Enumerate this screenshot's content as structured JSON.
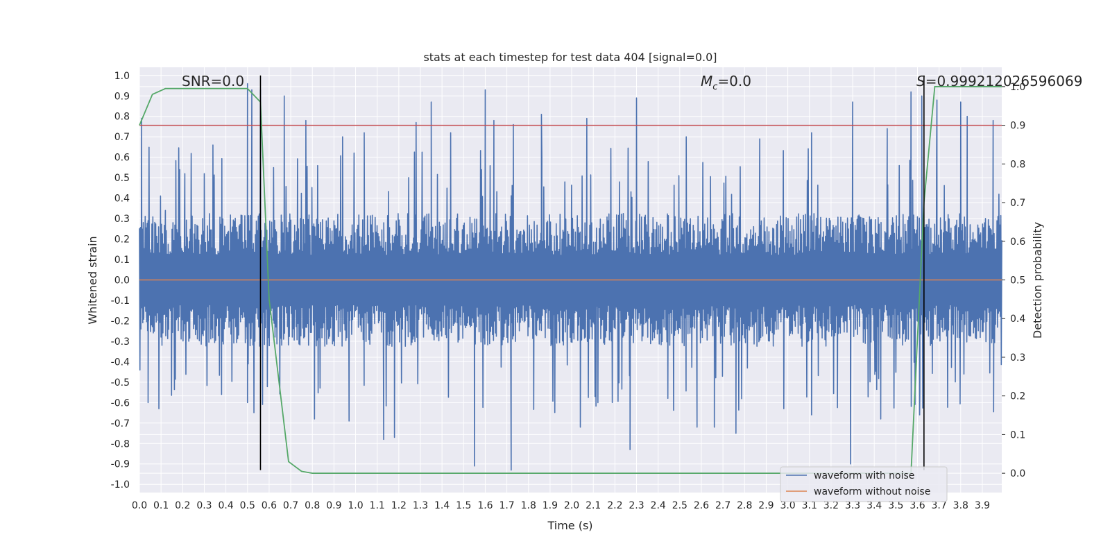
{
  "chart_data": {
    "type": "line",
    "title": "stats at each timestep for test data 404 [signal=0.0]",
    "xlabel": "Time (s)",
    "ylabel": "Whitened strain",
    "y2label": "Detection probability",
    "xlim": [
      0.0,
      3.99
    ],
    "ylim": [
      -1.04,
      1.04
    ],
    "y2lim": [
      -0.05,
      1.05
    ],
    "x_ticks": [
      "0.0",
      "0.1",
      "0.2",
      "0.3",
      "0.4",
      "0.5",
      "0.6",
      "0.7",
      "0.8",
      "0.9",
      "1.0",
      "1.1",
      "1.2",
      "1.3",
      "1.4",
      "1.5",
      "1.6",
      "1.7",
      "1.8",
      "1.9",
      "2.0",
      "2.1",
      "2.2",
      "2.3",
      "2.4",
      "2.5",
      "2.6",
      "2.7",
      "2.8",
      "2.9",
      "3.0",
      "3.1",
      "3.2",
      "3.3",
      "3.4",
      "3.5",
      "3.6",
      "3.7",
      "3.8",
      "3.9"
    ],
    "y_ticks": [
      "1.0",
      "0.9",
      "0.8",
      "0.7",
      "0.6",
      "0.5",
      "0.4",
      "0.3",
      "0.2",
      "0.1",
      "0.0",
      "-0.1",
      "-0.2",
      "-0.3",
      "-0.4",
      "-0.5",
      "-0.6",
      "-0.7",
      "-0.8",
      "-0.9",
      "-1.0"
    ],
    "y2_ticks": [
      "1.0",
      "0.9",
      "0.8",
      "0.7",
      "0.6",
      "0.5",
      "0.4",
      "0.3",
      "0.2",
      "0.1",
      "0.0"
    ],
    "grid": true,
    "legend": {
      "placement": "bottom-right",
      "entries": [
        {
          "label": "waveform with noise",
          "color": "#4c72b0"
        },
        {
          "label": "waveform without noise",
          "color": "#dd8452"
        }
      ]
    },
    "annotations": {
      "snr_text": "SNR=0.0",
      "mc_symbol": "M",
      "mc_sub": "c",
      "mc_value": "=0.0",
      "s_symbol": "S",
      "s_value": "=0.999212026596069"
    },
    "series": [
      {
        "name": "waveform with noise",
        "color": "#4c72b0",
        "axis": "left",
        "peaks_up": [
          [
            0.01,
            0.79
          ],
          [
            0.12,
            0.34
          ],
          [
            0.21,
            0.52
          ],
          [
            0.3,
            0.52
          ],
          [
            0.34,
            0.66
          ],
          [
            0.5,
            0.96
          ],
          [
            0.52,
            0.93
          ],
          [
            0.56,
            0.93
          ],
          [
            0.67,
            0.9
          ],
          [
            0.77,
            0.78
          ],
          [
            0.94,
            0.7
          ],
          [
            1.04,
            0.72
          ],
          [
            1.28,
            0.77
          ],
          [
            1.35,
            0.87
          ],
          [
            1.44,
            0.72
          ],
          [
            1.6,
            0.93
          ],
          [
            1.64,
            0.78
          ],
          [
            1.73,
            0.76
          ],
          [
            1.86,
            0.81
          ],
          [
            2.07,
            0.79
          ],
          [
            2.3,
            0.89
          ],
          [
            2.53,
            0.7
          ],
          [
            2.87,
            0.69
          ],
          [
            3.11,
            0.72
          ],
          [
            3.3,
            0.87
          ],
          [
            3.46,
            0.74
          ],
          [
            3.57,
            0.92
          ],
          [
            3.62,
            0.9
          ],
          [
            3.69,
            0.88
          ],
          [
            3.8,
            0.87
          ],
          [
            3.83,
            0.8
          ],
          [
            3.95,
            0.78
          ]
        ],
        "peaks_down": [
          [
            0.04,
            -0.6
          ],
          [
            0.09,
            -0.63
          ],
          [
            0.38,
            -0.56
          ],
          [
            0.5,
            -0.6
          ],
          [
            0.81,
            -0.68
          ],
          [
            0.97,
            -0.69
          ],
          [
            1.13,
            -0.78
          ],
          [
            1.18,
            -0.77
          ],
          [
            1.55,
            -0.91
          ],
          [
            1.72,
            -0.93
          ],
          [
            2.04,
            -0.72
          ],
          [
            2.27,
            -0.83
          ],
          [
            2.58,
            -0.72
          ],
          [
            2.66,
            -0.72
          ],
          [
            2.76,
            -0.75
          ],
          [
            3.11,
            -0.66
          ],
          [
            3.29,
            -0.9
          ],
          [
            3.43,
            -0.68
          ],
          [
            3.61,
            -0.66
          ]
        ]
      },
      {
        "name": "waveform without noise",
        "color": "#dd8452",
        "axis": "left",
        "x": [
          0.0,
          3.99
        ],
        "y": [
          0.0,
          0.0
        ]
      },
      {
        "name": "",
        "color": "#55a868",
        "axis": "right",
        "x": [
          0.0,
          0.06,
          0.12,
          0.5,
          0.56,
          0.6,
          0.69,
          0.75,
          0.8,
          1.0,
          2.0,
          3.0,
          3.57,
          3.6,
          3.63,
          3.68,
          3.99
        ],
        "y": [
          0.9,
          0.98,
          0.995,
          0.995,
          0.96,
          0.45,
          0.03,
          0.005,
          0.0,
          0.0,
          0.0,
          0.0,
          0.0,
          0.35,
          0.7,
          1.0,
          1.0
        ]
      }
    ],
    "hlines": [
      {
        "axis": "right",
        "y": 0.9,
        "color": "#c44e52"
      }
    ],
    "vlines": [
      {
        "x": 0.56,
        "y_from": -0.93,
        "y_to": 1.0,
        "color": "#000000"
      },
      {
        "x": 3.63,
        "y_from": -0.93,
        "y_to": 1.0,
        "color": "#000000"
      }
    ]
  }
}
